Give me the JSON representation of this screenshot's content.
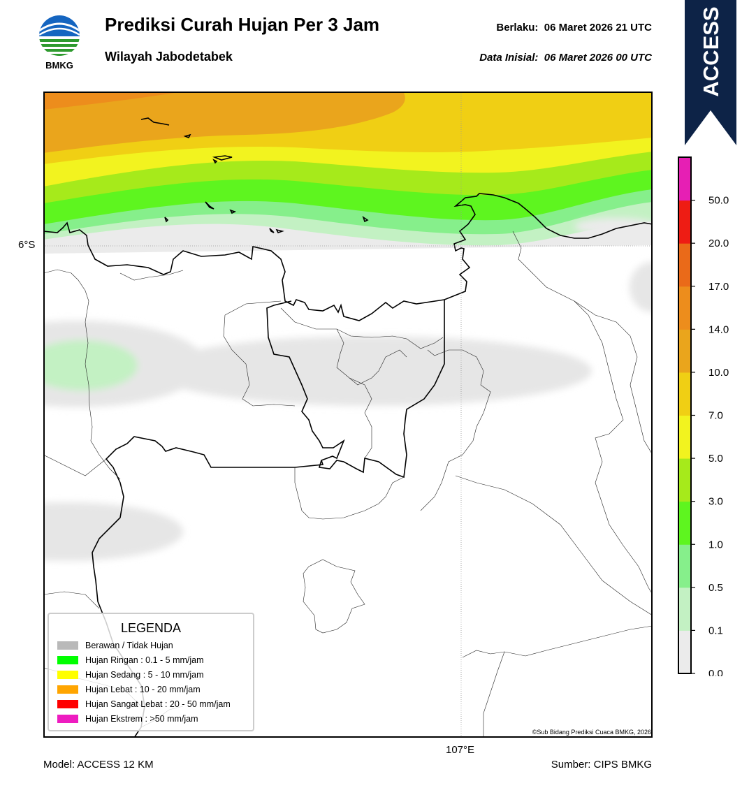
{
  "header": {
    "logo_text": "BMKG",
    "title": "Prediksi Curah Hujan Per 3 Jam",
    "subtitle": "Wilayah Jabodetabek",
    "valid_label": "Berlaku:",
    "valid_value": "06 Maret 2026 21 UTC",
    "init_label": "Data Inisial:",
    "init_value": "06 Maret 2026 00 UTC"
  },
  "model_banner": {
    "text": "ACCESS",
    "color": "#0d2347"
  },
  "map": {
    "lat_label": "6°S",
    "lon_label": "107°E",
    "copyright": "©Sub Bidang Prediksi Cuaca BMKG, 2026"
  },
  "footer": {
    "model": "Model: ACCESS 12 KM",
    "source": "Sumber: CIPS BMKG"
  },
  "colorbar": {
    "ticks": [
      "50.0",
      "20.0",
      "17.0",
      "14.0",
      "10.0",
      "7.0",
      "5.0",
      "3.0",
      "1.0",
      "0.5",
      "0.1",
      "0.0"
    ],
    "colors": [
      "#ebebeb",
      "#c3f1c3",
      "#86ef8b",
      "#5ef51f",
      "#a6ea1b",
      "#f2f31f",
      "#f0cf14",
      "#eaa51c",
      "#ed8d1c",
      "#ea6a19",
      "#ee1c14",
      "#e61fb4"
    ]
  },
  "legend": {
    "title": "LEGENDA",
    "items": [
      {
        "label": "Berawan / Tidak Hujan",
        "color": "#b9b9b9"
      },
      {
        "label": "Hujan Ringan : 0.1 - 5 mm/jam",
        "color": "#00ff00"
      },
      {
        "label": "Hujan Sedang : 5 - 10 mm/jam",
        "color": "#ffff00"
      },
      {
        "label": "Hujan Lebat : 10 - 20 mm/jam",
        "color": "#ffa500"
      },
      {
        "label": "Hujan Sangat Lebat : 20 - 50 mm/jam",
        "color": "#ff0000"
      },
      {
        "label": "Hujan Ekstrem : >50 mm/jam",
        "color": "#ee1cc0"
      }
    ]
  }
}
